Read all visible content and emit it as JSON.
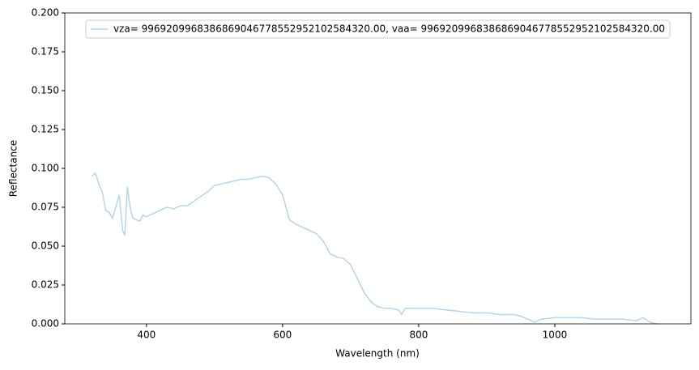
{
  "chart_data": {
    "type": "line",
    "xlabel": "Wavelength (nm)",
    "ylabel": "Reflectance",
    "x": [
      320,
      325,
      330,
      335,
      340,
      345,
      350,
      355,
      360,
      365,
      368,
      372,
      376,
      380,
      385,
      390,
      395,
      400,
      410,
      420,
      430,
      440,
      450,
      460,
      470,
      480,
      490,
      500,
      510,
      520,
      530,
      540,
      550,
      560,
      570,
      580,
      590,
      600,
      605,
      610,
      620,
      630,
      640,
      650,
      660,
      670,
      680,
      690,
      700,
      710,
      720,
      730,
      740,
      750,
      760,
      770,
      775,
      780,
      800,
      820,
      840,
      860,
      880,
      900,
      920,
      940,
      950,
      960,
      970,
      980,
      1000,
      1020,
      1040,
      1060,
      1080,
      1100,
      1120,
      1130,
      1140,
      1150
    ],
    "series": [
      {
        "name": "vza= 996920996838686904677855295210258432​0.00, vaa= 9969209968386869046778552952102584320.00",
        "color": "#b7d4e8",
        "values": [
          0.095,
          0.097,
          0.09,
          0.085,
          0.073,
          0.072,
          0.068,
          0.075,
          0.083,
          0.06,
          0.057,
          0.088,
          0.075,
          0.068,
          0.067,
          0.066,
          0.07,
          0.069,
          0.071,
          0.073,
          0.075,
          0.074,
          0.076,
          0.076,
          0.079,
          0.082,
          0.085,
          0.089,
          0.09,
          0.091,
          0.092,
          0.093,
          0.093,
          0.094,
          0.095,
          0.094,
          0.09,
          0.083,
          0.075,
          0.067,
          0.064,
          0.062,
          0.06,
          0.058,
          0.053,
          0.045,
          0.043,
          0.042,
          0.038,
          0.029,
          0.02,
          0.014,
          0.011,
          0.01,
          0.01,
          0.009,
          0.006,
          0.01,
          0.01,
          0.01,
          0.009,
          0.008,
          0.007,
          0.007,
          0.006,
          0.006,
          0.005,
          0.003,
          0.001,
          0.003,
          0.004,
          0.004,
          0.004,
          0.003,
          0.003,
          0.003,
          0.002,
          0.004,
          0.001,
          0.0
        ]
      }
    ],
    "xlim": [
      280,
      1200
    ],
    "ylim": [
      0,
      0.2
    ],
    "xticks": [
      400,
      600,
      800,
      1000
    ],
    "yticks": [
      {
        "value": 0,
        "label": "0.000"
      },
      {
        "value": 0.025,
        "label": "0.025"
      },
      {
        "value": 0.05,
        "label": "0.050"
      },
      {
        "value": 0.075,
        "label": "0.075"
      },
      {
        "value": 0.1,
        "label": "0.100"
      },
      {
        "value": 0.125,
        "label": "0.125"
      },
      {
        "value": 0.15,
        "label": "0.150"
      },
      {
        "value": 0.175,
        "label": "0.175"
      },
      {
        "value": 0.2,
        "label": "0.200"
      }
    ],
    "legend": "upper center",
    "grid": false
  }
}
